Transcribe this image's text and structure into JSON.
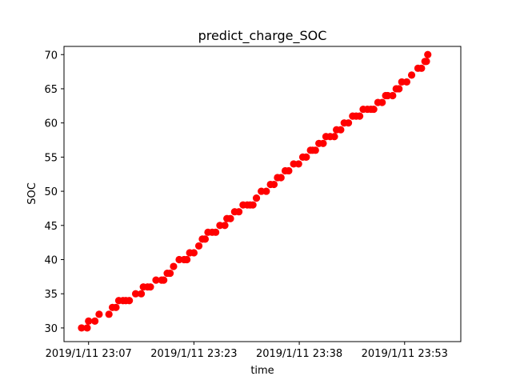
{
  "chart_data": {
    "type": "scatter",
    "title": "predict_charge_SOC",
    "xlabel": "time",
    "ylabel": "SOC",
    "grid": false,
    "legend": "none",
    "series_color": "#ff0000",
    "x_ticks": [
      "2019/1/11 23:07",
      "2019/1/11 23:23",
      "2019/1/11 23:38",
      "2019/1/11 23:53"
    ],
    "x_tick_minutes": [
      0,
      15,
      30,
      45
    ],
    "xlim_minutes": [
      -3.5,
      53
    ],
    "y_ticks": [
      "30",
      "35",
      "40",
      "45",
      "50",
      "55",
      "60",
      "65",
      "70"
    ],
    "ylim": [
      28.0,
      71.2
    ],
    "x_minutes": [
      -1.0,
      -0.2,
      0.0,
      0.9,
      1.5,
      2.9,
      3.4,
      3.9,
      4.3,
      4.9,
      5.3,
      5.8,
      6.7,
      7.5,
      7.8,
      8.4,
      8.8,
      9.6,
      10.4,
      10.7,
      11.2,
      11.6,
      12.1,
      12.9,
      13.6,
      14.0,
      14.4,
      15.0,
      15.7,
      16.2,
      16.6,
      17.0,
      17.6,
      18.1,
      18.7,
      19.4,
      19.7,
      20.2,
      20.8,
      21.4,
      22.0,
      22.6,
      23.0,
      23.4,
      23.9,
      24.6,
      25.3,
      25.9,
      26.4,
      26.9,
      27.4,
      28.0,
      28.5,
      29.2,
      29.9,
      30.5,
      31.0,
      31.6,
      31.9,
      32.3,
      32.8,
      33.4,
      33.8,
      34.4,
      35.0,
      35.3,
      35.9,
      36.4,
      37.0,
      37.6,
      38.1,
      38.6,
      39.1,
      39.7,
      40.2,
      40.6,
      41.2,
      41.8,
      42.3,
      42.6,
      43.3,
      43.8,
      44.2,
      44.6,
      45.3,
      46.0,
      46.9,
      47.4,
      47.9,
      48.1,
      48.3
    ],
    "y_soc": [
      30,
      30,
      31,
      31,
      32,
      32,
      33,
      33,
      34,
      34,
      34,
      34,
      35,
      35,
      36,
      36,
      36,
      37,
      37,
      37,
      38,
      38,
      39,
      40,
      40,
      40,
      41,
      41,
      42,
      43,
      43,
      44,
      44,
      44,
      45,
      45,
      46,
      46,
      47,
      47,
      48,
      48,
      48,
      48,
      49,
      50,
      50,
      51,
      51,
      52,
      52,
      53,
      53,
      54,
      54,
      55,
      55,
      56,
      56,
      56,
      57,
      57,
      58,
      58,
      58,
      59,
      59,
      60,
      60,
      61,
      61,
      61,
      62,
      62,
      62,
      62,
      63,
      63,
      64,
      64,
      64,
      65,
      65,
      66,
      66,
      67,
      68,
      68,
      69,
      69,
      70
    ]
  }
}
